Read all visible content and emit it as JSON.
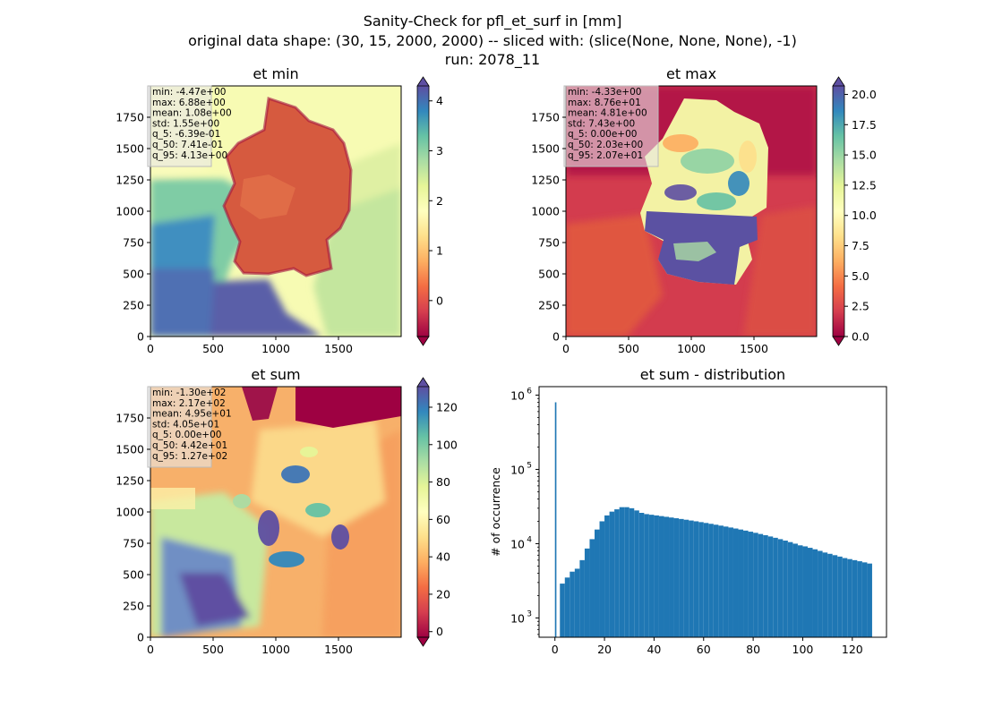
{
  "figure": {
    "title_lines": [
      "Sanity-Check for pfl_et_surf in [mm]",
      "original data shape: (30, 15, 2000, 2000) -- sliced with: (slice(None, None, None), -1)",
      "run: 2078_11"
    ],
    "colormap": "Spectral",
    "colormap_stops": [
      "#9e0142",
      "#d53e4f",
      "#f46d43",
      "#fdae61",
      "#fee08b",
      "#ffffbf",
      "#e6f598",
      "#abdda4",
      "#66c2a5",
      "#3288bd",
      "#5e4fa2"
    ]
  },
  "chart_data": [
    {
      "type": "heatmap",
      "title": "et min",
      "x_ticks": [
        "0",
        "500",
        "1000",
        "1500"
      ],
      "y_ticks": [
        "0",
        "250",
        "500",
        "750",
        "1000",
        "1250",
        "1500",
        "1750"
      ],
      "xlim": [
        0,
        2000
      ],
      "ylim": [
        0,
        2000
      ],
      "colorbar": {
        "range": [
          -0.72,
          4.3
        ],
        "ticks": [
          "0",
          "1",
          "2",
          "3",
          "4"
        ],
        "tick_values": [
          0,
          1,
          2,
          3,
          4
        ],
        "extend": "both"
      },
      "stats": [
        "min: -4.47e+00",
        "max: 6.88e+00",
        "mean: 1.08e+00",
        "std: 1.55e+00",
        "q_5: -6.39e-01",
        "q_50: 7.41e-01",
        "q_95: 4.13e+00"
      ]
    },
    {
      "type": "heatmap",
      "title": "et max",
      "x_ticks": [
        "0",
        "500",
        "1000",
        "1500"
      ],
      "y_ticks": [
        "0",
        "250",
        "500",
        "750",
        "1000",
        "1250",
        "1500",
        "1750"
      ],
      "xlim": [
        0,
        2000
      ],
      "ylim": [
        0,
        2000
      ],
      "colorbar": {
        "range": [
          0,
          20.7
        ],
        "ticks": [
          "0.0",
          "2.5",
          "5.0",
          "7.5",
          "10.0",
          "12.5",
          "15.0",
          "17.5",
          "20.0"
        ],
        "tick_values": [
          0,
          2.5,
          5,
          7.5,
          10,
          12.5,
          15,
          17.5,
          20
        ],
        "extend": "both"
      },
      "stats": [
        "min: -4.33e+00",
        "max: 8.76e+01",
        "mean: 4.81e+00",
        "std: 7.43e+00",
        "q_5: 0.00e+00",
        "q_50: 2.03e+00",
        "q_95: 2.07e+01"
      ]
    },
    {
      "type": "heatmap",
      "title": "et sum",
      "x_ticks": [
        "0",
        "500",
        "1000",
        "1500"
      ],
      "y_ticks": [
        "0",
        "250",
        "500",
        "750",
        "1000",
        "1250",
        "1500",
        "1750"
      ],
      "xlim": [
        0,
        2000
      ],
      "ylim": [
        0,
        2000
      ],
      "colorbar": {
        "range": [
          -3,
          131
        ],
        "ticks": [
          "0",
          "20",
          "40",
          "60",
          "80",
          "100",
          "120"
        ],
        "tick_values": [
          0,
          20,
          40,
          60,
          80,
          100,
          120
        ],
        "extend": "both"
      },
      "stats": [
        "min: -1.30e+02",
        "max: 2.17e+02",
        "mean: 4.95e+01",
        "std: 4.05e+01",
        "q_5: 0.00e+00",
        "q_50: 4.42e+01",
        "q_95: 1.27e+02"
      ]
    },
    {
      "type": "bar",
      "title": "et sum - distribution",
      "ylabel": "# of occurrence",
      "yscale": "log",
      "xlim": [
        -6.4,
        133.8
      ],
      "ylim": [
        550,
        1300000
      ],
      "x_ticks": [
        "0",
        "20",
        "40",
        "60",
        "80",
        "100",
        "120"
      ],
      "x_tick_values": [
        0,
        20,
        40,
        60,
        80,
        100,
        120
      ],
      "y_ticks": [
        {
          "base": "10",
          "exp": "3",
          "value": 1000
        },
        {
          "base": "10",
          "exp": "4",
          "value": 10000
        },
        {
          "base": "10",
          "exp": "5",
          "value": 100000
        },
        {
          "base": "10",
          "exp": "6",
          "value": 1000000
        }
      ],
      "bar_color": "#1f77b4",
      "x": [
        0,
        2,
        4,
        6,
        8,
        10,
        12,
        14,
        16,
        18,
        20,
        22,
        24,
        26,
        28,
        30,
        32,
        34,
        36,
        38,
        40,
        42,
        44,
        46,
        48,
        50,
        52,
        54,
        56,
        58,
        60,
        62,
        64,
        66,
        68,
        70,
        72,
        74,
        76,
        78,
        80,
        82,
        84,
        86,
        88,
        90,
        92,
        94,
        96,
        98,
        100,
        102,
        104,
        106,
        108,
        110,
        112,
        114,
        116,
        118,
        120,
        122,
        124,
        126
      ],
      "values": [
        800000,
        2900,
        3500,
        4200,
        4600,
        6000,
        8600,
        11500,
        15500,
        20000,
        24000,
        27000,
        29000,
        31000,
        31000,
        30000,
        28000,
        26000,
        25000,
        24500,
        24000,
        23500,
        23000,
        22500,
        22000,
        21500,
        21000,
        20500,
        20000,
        19500,
        19000,
        18500,
        18000,
        17500,
        17000,
        16500,
        16000,
        15500,
        15000,
        14500,
        14000,
        13500,
        13000,
        12500,
        12000,
        11500,
        11000,
        10500,
        10000,
        9500,
        9200,
        8800,
        8400,
        8000,
        7600,
        7300,
        7000,
        6700,
        6400,
        6200,
        6000,
        5800,
        5600,
        5400
      ]
    }
  ]
}
